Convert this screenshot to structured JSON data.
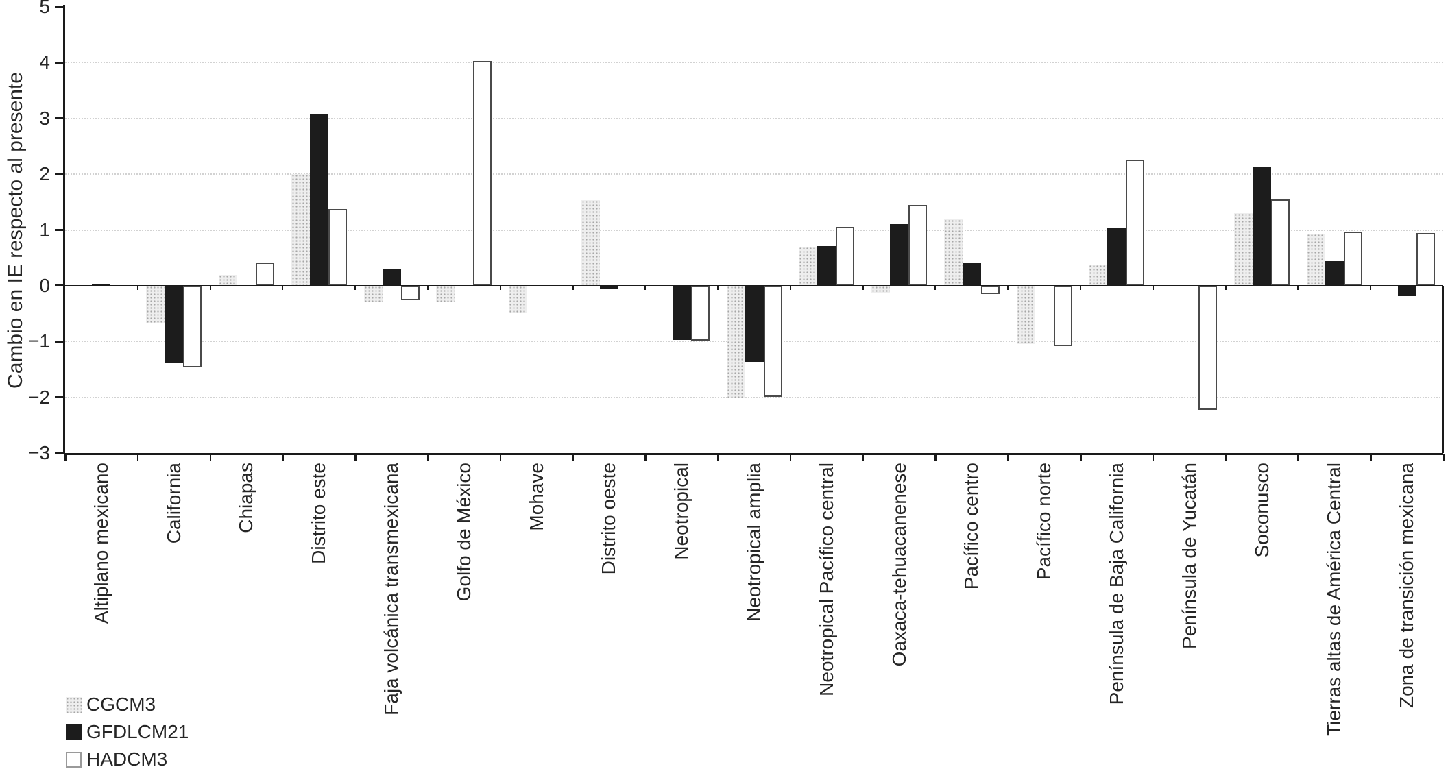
{
  "chart_data": {
    "type": "bar",
    "title": "",
    "xlabel": "",
    "ylabel": "Cambio en IE respecto al presente",
    "ylim": [
      -3,
      5
    ],
    "yticks": [
      5,
      4,
      3,
      2,
      1,
      0,
      -1,
      -2,
      -3
    ],
    "ytick_labels": [
      "5",
      "4",
      "3",
      "2",
      "1",
      "0",
      "−1",
      "−2",
      "−3"
    ],
    "gridline_values": [
      4,
      3,
      2,
      1,
      -1,
      -2
    ],
    "grid": "horizontal-dotted",
    "legend_position": "bottom-left",
    "categories": [
      "Altiplano mexicano",
      "California",
      "Chiapas",
      "Distrito este",
      "Faja volcánica transmexicana",
      "Golfo de México",
      "Mohave",
      "Distrito oeste",
      "Neotropical",
      "Neotropical amplia",
      "Neotropical Pacífico central",
      "Oaxaca-tehuacanenese",
      "Pacífico centro",
      "Pacífico norte",
      "Península de Baja California",
      "Península de Yucatán",
      "Soconusco",
      "Tierras altas de América Central",
      "Zona de transición mexicana"
    ],
    "series": [
      {
        "name": "CGCM3",
        "style": "stippled-gray",
        "values": [
          0,
          -0.67,
          0.19,
          2.0,
          -0.28,
          -0.3,
          -0.49,
          1.54,
          0,
          -2.0,
          0.7,
          -0.14,
          1.19,
          -1.04,
          0.38,
          0,
          1.3,
          0.93,
          0
        ]
      },
      {
        "name": "GFDLCM21",
        "style": "solid-black",
        "values": [
          0.04,
          -1.38,
          0,
          3.07,
          0.3,
          0,
          0,
          -0.06,
          -0.97,
          -1.37,
          0.71,
          1.11,
          0.4,
          0,
          1.03,
          0,
          2.13,
          0.44,
          -0.18
        ]
      },
      {
        "name": "HADCM3",
        "style": "white-outlined",
        "values": [
          0,
          -1.47,
          0.42,
          1.38,
          -0.26,
          4.03,
          0,
          0,
          -0.98,
          -1.99,
          1.05,
          1.45,
          -0.15,
          -1.08,
          2.26,
          -2.22,
          1.55,
          0.97,
          0.95
        ]
      }
    ],
    "colors": {
      "cgcm3_fill": "#eeeeee",
      "cgcm3_dots": "#a6a6a6",
      "gfdlcm21_fill": "#1c1c1c",
      "hadcm3_fill": "#ffffff",
      "hadcm3_border": "#4a4a4a",
      "axis": "#1a1a1a",
      "gridline": "#d2d2d2",
      "text": "#262626"
    }
  }
}
